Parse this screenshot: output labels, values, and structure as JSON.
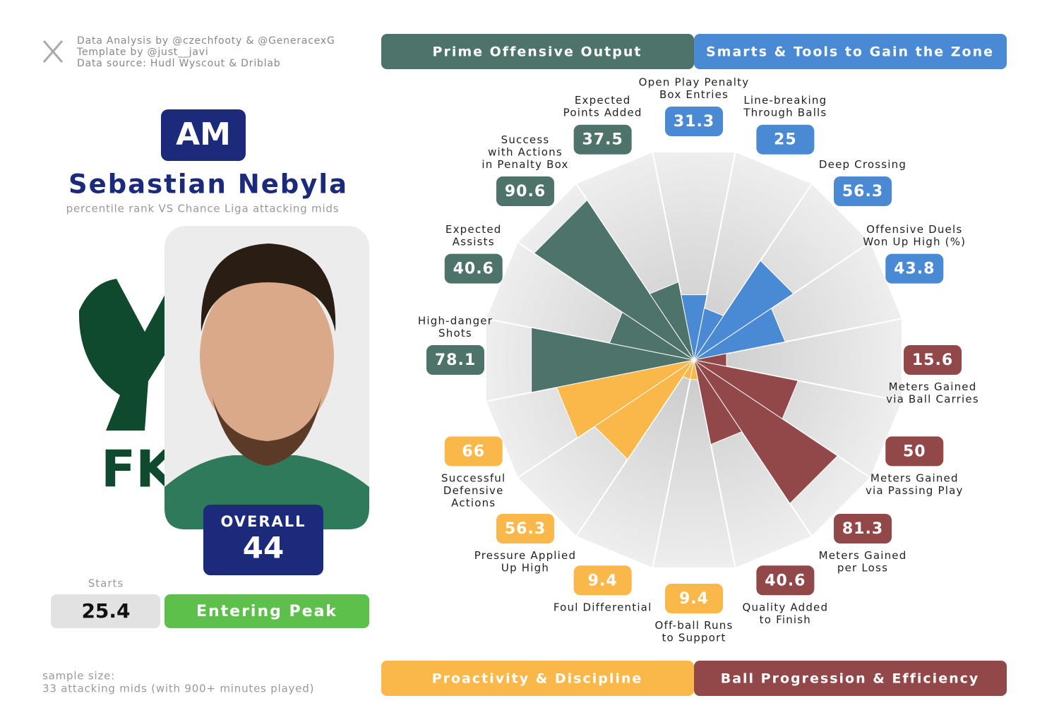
{
  "header": {
    "credits": [
      "Data Analysis by @czechfooty & @GeneracexG",
      "Template by @just__javi",
      "Data source: Hudl Wyscout & Driblab"
    ]
  },
  "player": {
    "position": "AM",
    "name": "Sebastian Nebyla",
    "subtitle": "percentile rank VS Chance Liga attacking mids",
    "overall_label": "OVERALL",
    "overall": 44,
    "starts_label": "Starts",
    "starts": 25.4,
    "status": "Entering Peak"
  },
  "footer": {
    "lines": [
      "sample size:",
      "33 attacking mids (with 900+ minutes played)"
    ]
  },
  "chart_data": {
    "type": "pizza",
    "rlim": [
      0,
      100
    ],
    "series": [
      {
        "name": "Smarts & Tools to Gain the Zone",
        "color": "#4a8ad4",
        "categories": [
          "Open Play Penalty\nBox Entries",
          "Line-breaking\nThrough Balls",
          "Deep Crossing",
          "Offensive Duels\nWon Up High (%)"
        ],
        "values": [
          31.3,
          25,
          56.3,
          43.8
        ]
      },
      {
        "name": "Ball Progression & Efficiency",
        "color": "#924848",
        "categories": [
          "Meters Gained\nvia Ball Carries",
          "Meters Gained\nvia Passing Play",
          "Meters Gained\nper Loss",
          "Quality Added\nto Finish"
        ],
        "values": [
          15.6,
          50,
          81.3,
          40.6
        ]
      },
      {
        "name": "Proactivity & Discipline",
        "color": "#fbb84a",
        "categories": [
          "Off-ball Runs\nto Support",
          "Foul Differential",
          "Pressure Applied\nUp High",
          "Successful\nDefensive\nActions"
        ],
        "values": [
          9.4,
          9.4,
          56.3,
          66
        ]
      },
      {
        "name": "Prime Offensive Output",
        "color": "#4e736b",
        "categories": [
          "High-danger\nShots",
          "Expected\nAssists",
          "Success\nwith Actions\nin Penalty Box",
          "Expected\nPoints Added"
        ],
        "values": [
          78.1,
          40.6,
          90.6,
          37.5
        ]
      }
    ]
  }
}
